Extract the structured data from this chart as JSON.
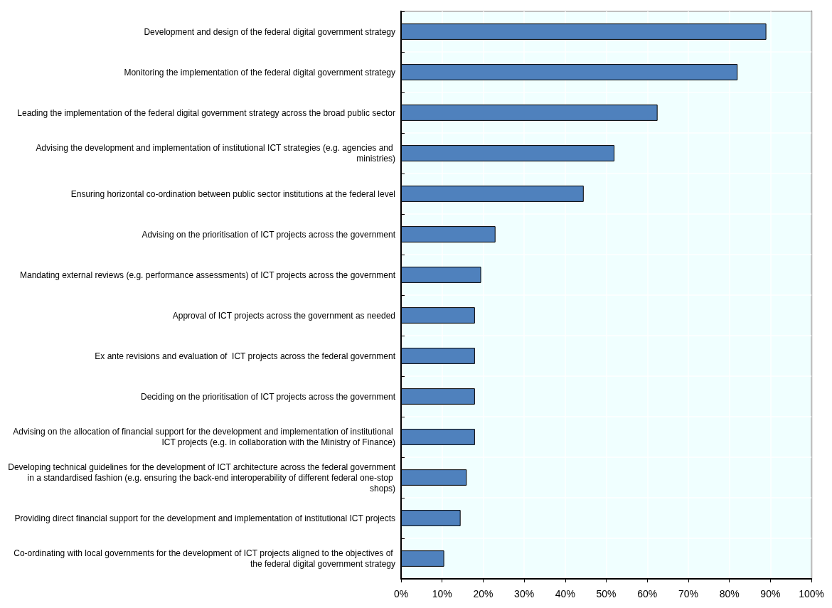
{
  "chart_data": {
    "type": "bar",
    "orientation": "horizontal",
    "categories": [
      "Development and design of the federal digital government strategy",
      "Monitoring the implementation of the federal digital government strategy",
      "Leading the implementation of the federal digital government strategy across the broad public sector",
      "Advising the development and implementation of institutional ICT strategies (e.g. agencies and ministries)",
      "Ensuring horizontal co-ordination between public sector institutions at the federal level",
      "Advising on the prioritisation of ICT projects across the government",
      "Mandating external reviews (e.g. performance assessments) of ICT projects across the government",
      "Approval of ICT projects across the government as needed",
      "Ex ante revisions and evaluation of  ICT projects across the federal government",
      "Deciding on the prioritisation of ICT projects across the government",
      "Advising on the allocation of financial support for the development and implementation of institutional ICT projects (e.g. in collaboration with the Ministry of Finance)",
      "Developing technical guidelines for the development of ICT architecture across the federal government in a standardised fashion (e.g. ensuring the back-end interoperability of different federal one-stop shops)",
      "Providing direct financial support for the development and implementation of institutional ICT projects",
      "Co-ordinating with local governments for the development of ICT projects aligned to the objectives of the federal digital government strategy"
    ],
    "values": [
      89,
      82,
      62.5,
      52,
      44.5,
      23,
      19.5,
      18,
      18,
      18,
      18,
      16,
      14.5,
      10.5
    ],
    "color": "#4f81bd",
    "xlim": [
      0,
      100
    ],
    "xticks": [
      {
        "value": 0,
        "label": "0%"
      },
      {
        "value": 10,
        "label": "10%"
      },
      {
        "value": 20,
        "label": "20%"
      },
      {
        "value": 30,
        "label": "30%"
      },
      {
        "value": 40,
        "label": "40%"
      },
      {
        "value": 50,
        "label": "50%"
      },
      {
        "value": 60,
        "label": "60%"
      },
      {
        "value": 70,
        "label": "70%"
      },
      {
        "value": 80,
        "label": "80%"
      },
      {
        "value": 90,
        "label": "90%"
      },
      {
        "value": 100,
        "label": "100%"
      }
    ],
    "grid": true
  }
}
